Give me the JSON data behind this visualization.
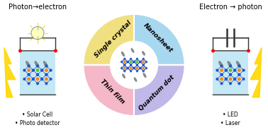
{
  "bg_color": "#ffffff",
  "fig_w": 3.78,
  "fig_h": 1.83,
  "dpi": 100,
  "wedge_colors": {
    "top_left": "#f0e080",
    "top_right": "#a8d8f0",
    "bottom_left": "#f5b8c8",
    "bottom_right": "#c0b8e8"
  },
  "wedge_labels": {
    "top_left": "Single crystal",
    "top_right": "Nanosheet",
    "bottom_left": "Thin film",
    "bottom_right": "Quantum dot"
  },
  "left_title": "Photon→electron",
  "right_title": "Electron → photon",
  "left_bullets": [
    "• Solar Cell",
    "• Photo detector"
  ],
  "right_bullets": [
    "• LED",
    "• Laser"
  ],
  "crystal_color": "#2255cc",
  "orange_dot": "#ff8800",
  "green_dot": "#55cc22",
  "sheet_color": "#888888",
  "circuit_color": "#333333"
}
